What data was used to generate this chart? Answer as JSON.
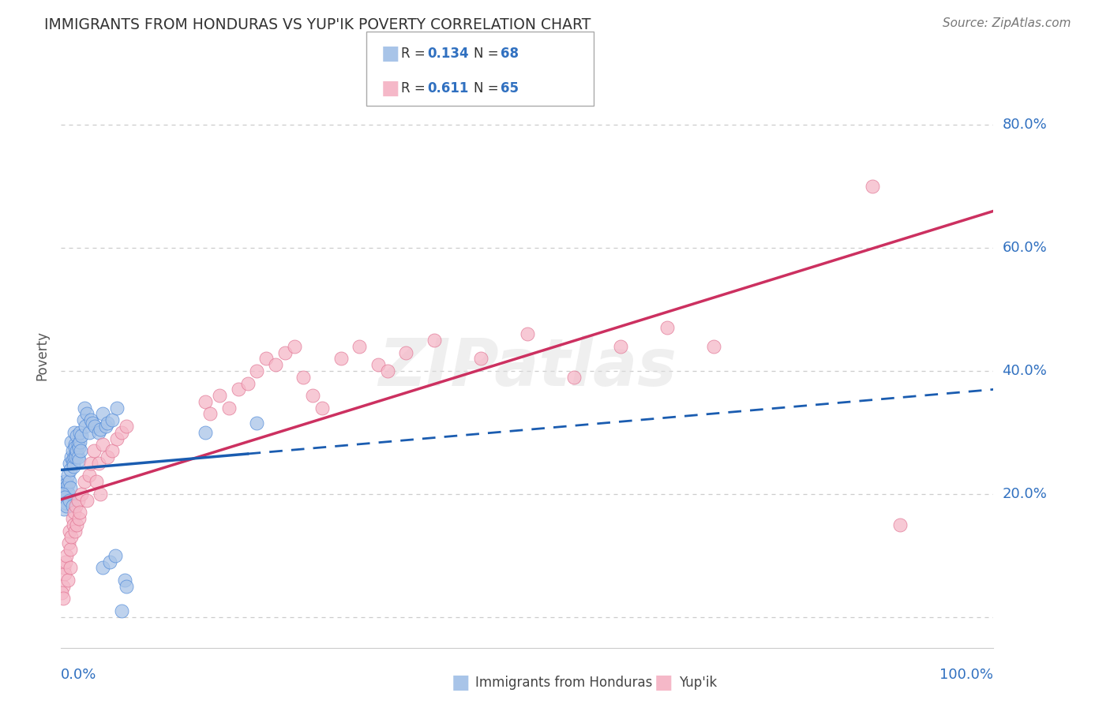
{
  "title": "IMMIGRANTS FROM HONDURAS VS YUP'IK POVERTY CORRELATION CHART",
  "source": "Source: ZipAtlas.com",
  "ylabel": "Poverty",
  "blue_R": 0.134,
  "blue_N": 68,
  "pink_R": 0.611,
  "pink_N": 65,
  "blue_color": "#a8c4e8",
  "pink_color": "#f5b8c8",
  "blue_edge_color": "#4a86d8",
  "pink_edge_color": "#e07090",
  "blue_line_color": "#1a5cb0",
  "pink_line_color": "#cc3060",
  "legend_label_blue": "Immigrants from Honduras",
  "legend_label_pink": "Yup'ik",
  "blue_points_x": [
    0.1,
    0.2,
    0.3,
    0.4,
    0.4,
    0.5,
    0.5,
    0.6,
    0.7,
    0.7,
    0.8,
    0.9,
    0.9,
    1.0,
    1.0,
    1.1,
    1.1,
    1.2,
    1.2,
    1.3,
    1.3,
    1.4,
    1.4,
    1.5,
    1.5,
    1.6,
    1.6,
    1.7,
    1.7,
    1.8,
    1.8,
    1.9,
    1.9,
    2.0,
    2.0,
    2.1,
    2.2,
    2.4,
    2.5,
    2.6,
    2.8,
    3.0,
    3.2,
    3.4,
    3.6,
    4.0,
    4.2,
    4.5,
    4.8,
    5.0,
    5.5,
    6.0,
    6.5,
    6.8,
    7.0,
    15.5,
    21.0,
    4.5,
    5.2,
    5.8,
    0.05,
    0.1,
    0.3,
    0.4,
    0.5,
    0.6,
    0.9,
    1.2
  ],
  "blue_points_y": [
    21.5,
    19.0,
    21.0,
    22.0,
    20.0,
    21.5,
    21.0,
    20.5,
    21.5,
    23.0,
    20.0,
    25.0,
    22.0,
    21.0,
    24.0,
    26.0,
    28.5,
    25.5,
    27.0,
    25.0,
    24.5,
    26.0,
    30.0,
    28.0,
    27.5,
    26.5,
    26.0,
    27.0,
    29.5,
    26.0,
    28.0,
    27.5,
    25.5,
    28.5,
    30.0,
    27.0,
    29.5,
    32.0,
    34.0,
    31.0,
    33.0,
    30.0,
    32.0,
    31.5,
    31.0,
    30.0,
    30.5,
    33.0,
    31.0,
    31.5,
    32.0,
    34.0,
    1.0,
    6.0,
    5.0,
    30.0,
    31.5,
    8.0,
    9.0,
    10.0,
    19.0,
    20.0,
    17.5,
    19.5,
    18.5,
    18.0,
    19.0,
    18.0
  ],
  "pink_points_x": [
    0.2,
    0.3,
    0.4,
    0.5,
    0.6,
    0.7,
    0.8,
    0.9,
    1.0,
    1.0,
    1.1,
    1.2,
    1.3,
    1.4,
    1.5,
    1.6,
    1.7,
    1.8,
    1.9,
    2.0,
    2.2,
    2.5,
    2.8,
    3.0,
    3.2,
    3.5,
    3.8,
    4.0,
    4.2,
    4.5,
    5.0,
    5.5,
    6.0,
    6.5,
    7.0,
    15.5,
    16.0,
    17.0,
    18.0,
    19.0,
    20.0,
    21.0,
    22.0,
    23.0,
    24.0,
    25.0,
    26.0,
    27.0,
    28.0,
    30.0,
    32.0,
    34.0,
    35.0,
    37.0,
    40.0,
    45.0,
    50.0,
    55.0,
    60.0,
    65.0,
    70.0,
    0.05,
    0.2,
    87.0,
    90.0
  ],
  "pink_points_y": [
    5.0,
    8.0,
    7.0,
    9.0,
    10.0,
    6.0,
    12.0,
    14.0,
    11.0,
    8.0,
    13.0,
    16.0,
    15.0,
    17.0,
    14.0,
    18.0,
    15.0,
    19.0,
    16.0,
    17.0,
    20.0,
    22.0,
    19.0,
    23.0,
    25.0,
    27.0,
    22.0,
    25.0,
    20.0,
    28.0,
    26.0,
    27.0,
    29.0,
    30.0,
    31.0,
    35.0,
    33.0,
    36.0,
    34.0,
    37.0,
    38.0,
    40.0,
    42.0,
    41.0,
    43.0,
    44.0,
    39.0,
    36.0,
    34.0,
    42.0,
    44.0,
    41.0,
    40.0,
    43.0,
    45.0,
    42.0,
    46.0,
    39.0,
    44.0,
    47.0,
    44.0,
    4.0,
    3.0,
    70.0,
    15.0
  ],
  "xlim": [
    0.0,
    100.0
  ],
  "ylim": [
    -5.0,
    90.0
  ],
  "ytick_vals": [
    0.0,
    20.0,
    40.0,
    60.0,
    80.0
  ],
  "ytick_labels": [
    "",
    "20.0%",
    "40.0%",
    "60.0%",
    "80.0%"
  ],
  "grid_color": "#cccccc",
  "background_color": "#ffffff",
  "title_color": "#333333",
  "axis_pct_color": "#3070c0",
  "R_color": "#3070c0"
}
